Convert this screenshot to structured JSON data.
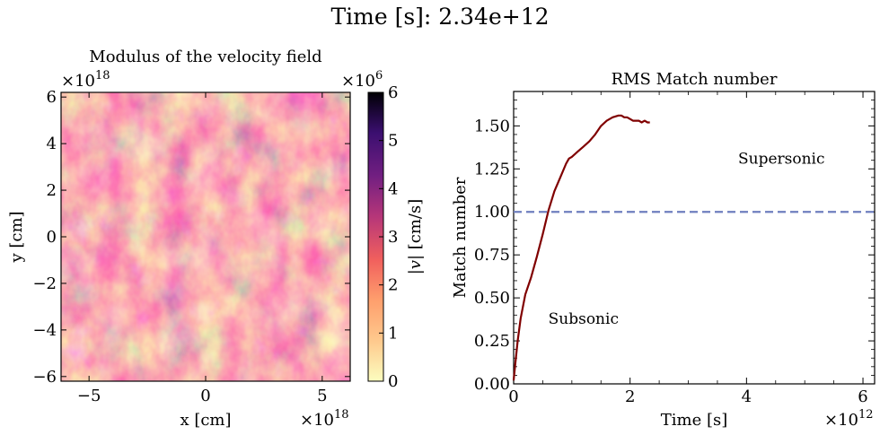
{
  "suptitle": "Time [s]: 2.34e+12",
  "colors": {
    "line": "#800000",
    "threshold": "#6f7fbf",
    "axes": "#000000",
    "field_palette": [
      "#fcfdbf",
      "#fec98d",
      "#fe9f6d",
      "#f1605d",
      "#b63679",
      "#721f81",
      "#3b0f70",
      "#000004"
    ]
  },
  "field_panel": {
    "title": "Modulus of the velocity field",
    "xlabel": "x [cm]",
    "ylabel": "y [cm]",
    "x_offset_label": "×10",
    "x_offset_exp": "18",
    "y_offset_label": "×10",
    "y_offset_exp": "18",
    "xlim": [
      -6.2,
      6.2
    ],
    "ylim": [
      -6.2,
      6.2
    ],
    "xticks": [
      "−5",
      "0",
      "5"
    ],
    "xtick_values": [
      -5,
      0,
      5
    ],
    "yticks": [
      "−6",
      "−4",
      "−2",
      "0",
      "2",
      "4",
      "6"
    ],
    "ytick_values": [
      -6,
      -4,
      -2,
      0,
      2,
      4,
      6
    ],
    "image_description": "turbulent velocity magnitude field, magma colormap"
  },
  "colorbar": {
    "label_prefix": "|",
    "label_symbol": "v",
    "label_suffix": "| [cm/s]",
    "offset_label": "×10",
    "offset_exp": "6",
    "range": [
      0,
      6
    ],
    "ticks": [
      "0",
      "1",
      "2",
      "3",
      "4",
      "5",
      "6"
    ],
    "tick_values": [
      0,
      1,
      2,
      3,
      4,
      5,
      6
    ],
    "colormap": "magma_r"
  },
  "chart_data": {
    "type": "line",
    "title": "RMS Match number",
    "xlabel": "Time [s]",
    "ylabel": "Match number",
    "x_offset_label": "×10",
    "x_offset_exp": "12",
    "xlim": [
      0,
      6.2
    ],
    "ylim": [
      0,
      1.7
    ],
    "xticks": [
      "0",
      "2",
      "4",
      "6"
    ],
    "xtick_values": [
      0,
      2,
      4,
      6
    ],
    "yticks": [
      "0.00",
      "0.25",
      "0.50",
      "0.75",
      "1.00",
      "1.25",
      "1.50"
    ],
    "ytick_values": [
      0,
      0.25,
      0.5,
      0.75,
      1.0,
      1.25,
      1.5
    ],
    "series": [
      {
        "x": [
          0.0,
          0.03,
          0.07,
          0.12,
          0.2,
          0.3,
          0.4,
          0.5,
          0.6,
          0.7,
          0.8,
          0.9,
          0.95,
          1.0,
          1.1,
          1.2,
          1.3,
          1.4,
          1.5,
          1.6,
          1.7,
          1.8,
          1.85,
          1.9,
          1.95,
          2.0,
          2.05,
          2.1,
          2.15,
          2.2,
          2.25,
          2.3,
          2.34
        ],
        "y": [
          0.02,
          0.12,
          0.25,
          0.38,
          0.52,
          0.62,
          0.74,
          0.87,
          1.01,
          1.12,
          1.2,
          1.28,
          1.31,
          1.32,
          1.35,
          1.38,
          1.41,
          1.45,
          1.5,
          1.53,
          1.55,
          1.56,
          1.56,
          1.55,
          1.55,
          1.54,
          1.53,
          1.53,
          1.53,
          1.52,
          1.53,
          1.52,
          1.52
        ]
      }
    ],
    "hline": {
      "y": 1.0,
      "style": "dashed"
    },
    "annotations": [
      {
        "text": "Supersonic",
        "x": 4.6,
        "y": 1.28
      },
      {
        "text": "Subsonic",
        "x": 1.2,
        "y": 0.35
      }
    ],
    "grid": false
  }
}
